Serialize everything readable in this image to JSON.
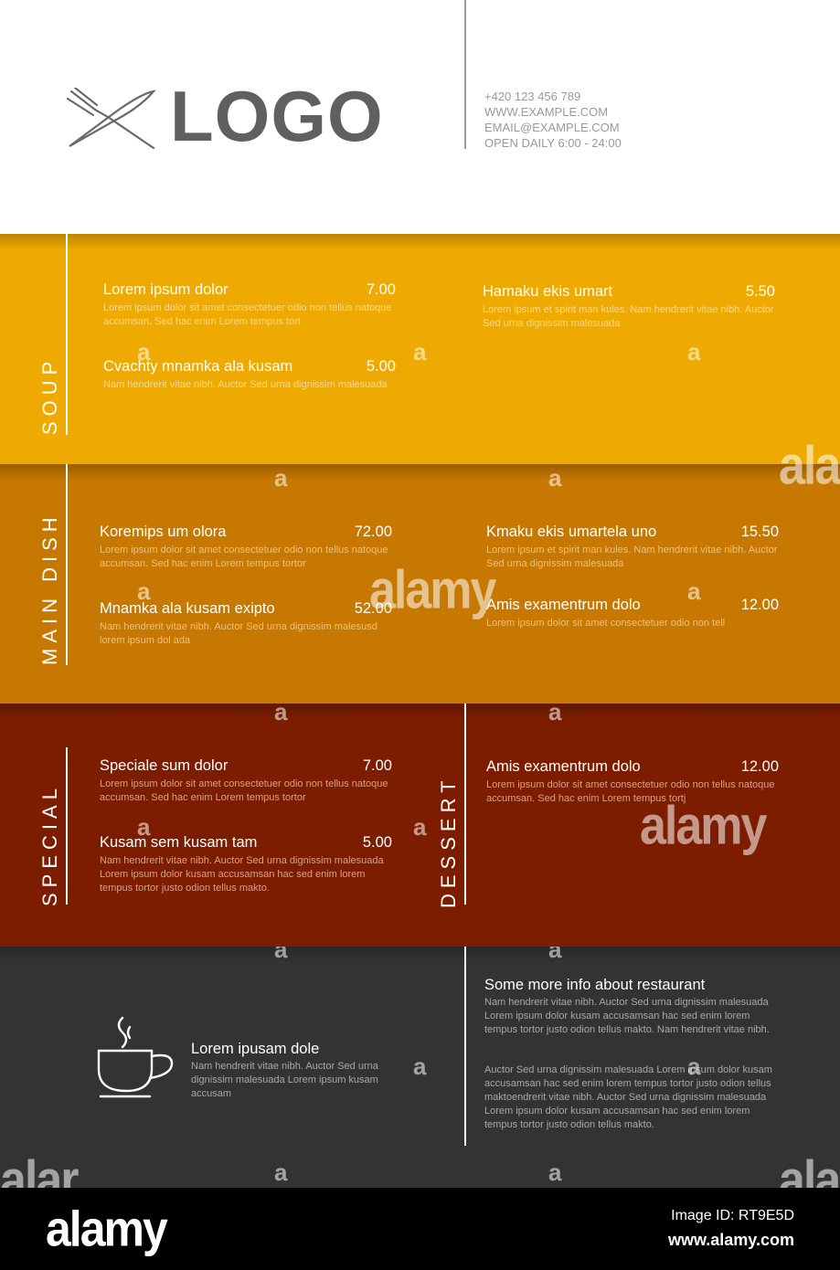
{
  "header": {
    "logo_text": "LOGO",
    "contact": [
      "+420 123 456 789",
      "WWW.EXAMPLE.COM",
      "EMAIL@EXAMPLE.COM",
      "OPEN DAILY 6:00 - 24:00"
    ]
  },
  "soup": {
    "label": "SOUP",
    "items": [
      {
        "name": "Lorem ipsum dolor",
        "price": "7.00",
        "desc": "Lorem ipsum dolor sit amet consectetuer odio non tellus natoque accumsan. Sed hac enim Lorem tempus tort"
      },
      {
        "name": "Cvachty mnamka ala kusam",
        "price": "5.00",
        "desc": "Nam hendrerit vitae nibh. Auctor Sed urna dignissim malesuada"
      },
      {
        "name": "Hamaku ekis umart",
        "price": "5.50",
        "desc": "Lorem ipsum et spirit man kules. Nam hendrerit vitae nibh. Auctor Sed urna dignissim malesuada"
      }
    ]
  },
  "main_dish": {
    "label": "MAIN DISH",
    "items": [
      {
        "name": "Koremips um olora",
        "price": "72.00",
        "desc": "Lorem ipsum dolor sit amet consectetuer odio non tellus natoque accumsan. Sed hac enim Lorem tempus tortor"
      },
      {
        "name": "Mnamka ala kusam exipto",
        "price": "52.00",
        "desc": "Nam hendrerit vitae nibh. Auctor Sed urna dignissim malesusd lorem ipsum dol ada"
      },
      {
        "name": "Kmaku ekis umartela uno",
        "price": "15.50",
        "desc": "Lorem ipsum et spirit man kules. Nam hendrerit vitae nibh. Auctor Sed urna dignissim malesuada"
      },
      {
        "name": "Amis examentrum dolo",
        "price": "12.00",
        "desc": "Lorem ipsum dolor sit amet consectetuer odio non tell"
      }
    ]
  },
  "special": {
    "label": "SPECIAL",
    "items": [
      {
        "name": "Speciale sum dolor",
        "price": "7.00",
        "desc": "Lorem ipsum dolor sit amet consectetuer odio non tellus natoque accumsan. Sed hac enim Lorem tempus tortor"
      },
      {
        "name": "Kusam sem kusam tam",
        "price": "5.00",
        "desc": "Nam hendrerit vitae nibh. Auctor Sed urna dignissim malesuada Lorem ipsum dolor kusam accusamsan hac sed enim lorem tempus tortor justo odion tellus makto."
      }
    ]
  },
  "dessert": {
    "label": "DESSERT",
    "items": [
      {
        "name": "Amis examentrum dolo",
        "price": "12.00",
        "desc": "Lorem ipsum dolor sit amet consectetuer odio non tellus natoque accumsan. Sed hac enim Lorem tempus tortj"
      }
    ]
  },
  "info": {
    "coffee_title": "Lorem ipusam dole",
    "coffee_desc": "Nam hendrerit vitae nibh. Auctor Sed urna dignissim malesuada Lorem ipsum kusam accusam",
    "title": "Some more info about restaurant",
    "paragraph1": "Nam hendrerit vitae nibh. Auctor Sed urna dignissim malesuada Lorem ipsum dolor kusam accusamsan hac sed enim lorem tempus tortor justo odion tellus makto. Nam hendrerit vitae nibh.",
    "paragraph2": "Auctor Sed urna dignissim malesuada Lorem ipsum dolor kusam accusamsan hac sed enim lorem tempus tortor justo odion tellus maktoendrerit vitae nibh. Auctor Sed urna dignissim malesuada Lorem ipsum dolor kusam accusamsan hac sed enim lorem tempus tortor justo odion tellus makto."
  },
  "watermark": {
    "glyph": "a",
    "brand": "alamy",
    "brand_partial": "alar"
  },
  "footer": {
    "brand": "alamy",
    "image_id": "Image ID: RT9E5D",
    "url": "www.alamy.com"
  }
}
